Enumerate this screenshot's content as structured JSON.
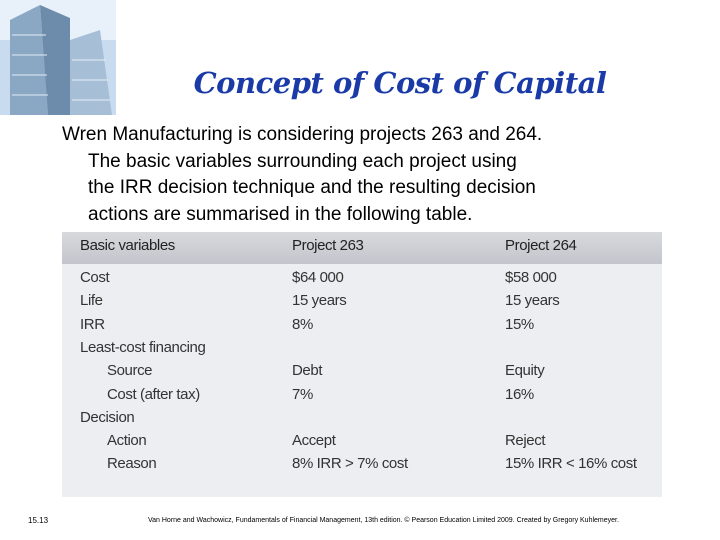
{
  "slide": {
    "title": "Concept of Cost of Capital",
    "paragraph": [
      "Wren Manufacturing is  considering projects 263 and 264.",
      "The basic variables surrounding each project using",
      "the IRR decision technique and the resulting decision",
      "actions are summarised in the following table."
    ],
    "table": {
      "header": [
        "Basic variables",
        "Project 263",
        "Project 264"
      ],
      "rows": [
        [
          "Cost",
          "$64 000",
          "$58 000"
        ],
        [
          "Life",
          "15 years",
          "15 years"
        ],
        [
          "IRR",
          "8%",
          "15%"
        ],
        {
          "label": "Least-cost financing",
          "rows": [
            [
              "Source",
              "Debt",
              "Equity"
            ],
            [
              "Cost (after tax)",
              "7%",
              "16%"
            ]
          ]
        },
        {
          "label": "Decision",
          "rows": [
            [
              "Action",
              "Accept",
              "Reject"
            ],
            [
              "Reason",
              "8% IRR > 7% cost",
              "15% IRR < 16% cost"
            ]
          ]
        }
      ]
    },
    "page_number": "15.13",
    "citation": "Van Horne and Wachowicz, Fundamentals of Financial Management, 13th edition. © Pearson Education Limited 2009. Created by Gregory Kuhlemeyer."
  }
}
